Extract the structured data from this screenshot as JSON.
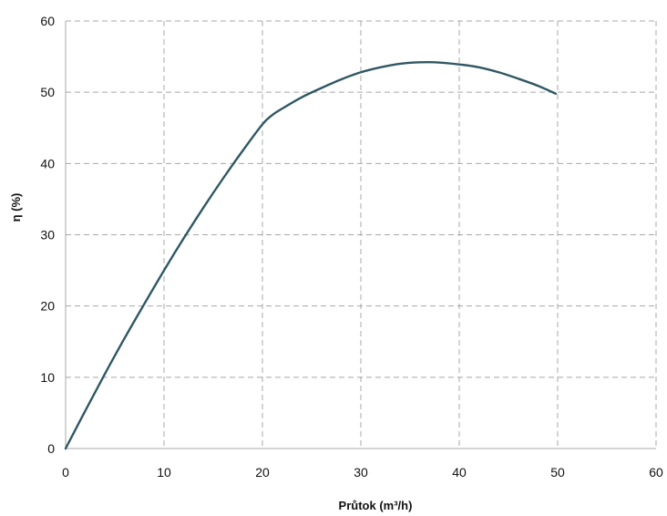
{
  "chart_data": {
    "type": "line",
    "title": "",
    "xlabel": "Průtok (m³/h)",
    "ylabel": "η (%)",
    "xlim": [
      0,
      60
    ],
    "ylim": [
      0,
      60
    ],
    "xticks": [
      0,
      10,
      20,
      30,
      40,
      50,
      60
    ],
    "yticks": [
      0,
      10,
      20,
      30,
      40,
      50,
      60
    ],
    "grid": true,
    "legend": "none",
    "series": [
      {
        "color": "#2f5863",
        "points": [
          [
            0,
            0
          ],
          [
            2,
            5.3
          ],
          [
            4,
            10.5
          ],
          [
            6,
            15.5
          ],
          [
            8,
            20.3
          ],
          [
            10,
            25.0
          ],
          [
            12,
            29.5
          ],
          [
            14,
            33.8
          ],
          [
            16,
            37.9
          ],
          [
            18,
            41.8
          ],
          [
            20,
            45.5
          ],
          [
            21,
            46.8
          ],
          [
            22,
            47.7
          ],
          [
            24,
            49.3
          ],
          [
            26,
            50.6
          ],
          [
            28,
            51.8
          ],
          [
            30,
            52.8
          ],
          [
            32,
            53.5
          ],
          [
            34,
            54.0
          ],
          [
            36,
            54.2
          ],
          [
            37.5,
            54.2
          ],
          [
            40,
            53.9
          ],
          [
            42,
            53.5
          ],
          [
            44,
            52.8
          ],
          [
            46,
            51.9
          ],
          [
            48,
            50.9
          ],
          [
            49.8,
            49.8
          ]
        ]
      }
    ]
  }
}
